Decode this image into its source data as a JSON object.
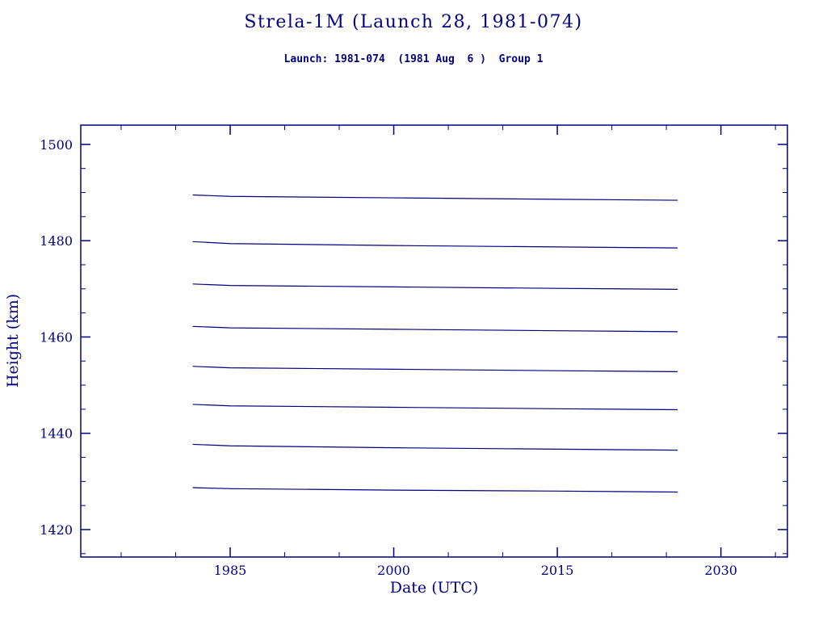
{
  "chart_data": {
    "type": "line",
    "title": "Strela-1M (Launch 28, 1981-074)",
    "subtitle": "Launch: 1981-074  (1981 Aug  6 )  Group 1",
    "xlabel": "Date (UTC)",
    "ylabel": "Height (km)",
    "xlim": [
      1971.3,
      2036.1
    ],
    "ylim": [
      1414.3,
      1504.0
    ],
    "xticks": [
      1985,
      2000,
      2015,
      2030
    ],
    "yticks": [
      1420,
      1440,
      1460,
      1480,
      1500
    ],
    "minor_step_x": 5,
    "minor_step_y": 5,
    "grid": false,
    "legend": "none",
    "line_color": "#000080",
    "text_color": "#000080",
    "background_color": "#ffffff",
    "series": [
      {
        "name": "series-1",
        "x": [
          1981.6,
          1985,
          2000,
          2015,
          2026
        ],
        "y": [
          1489.5,
          1489.2,
          1488.9,
          1488.6,
          1488.4
        ]
      },
      {
        "name": "series-2",
        "x": [
          1981.6,
          1985,
          2000,
          2015,
          2026
        ],
        "y": [
          1479.8,
          1479.4,
          1479.0,
          1478.7,
          1478.5
        ]
      },
      {
        "name": "series-3",
        "x": [
          1981.6,
          1985,
          2000,
          2015,
          2026
        ],
        "y": [
          1471.0,
          1470.7,
          1470.4,
          1470.1,
          1469.9
        ]
      },
      {
        "name": "series-4",
        "x": [
          1981.6,
          1985,
          2000,
          2015,
          2026
        ],
        "y": [
          1462.2,
          1461.9,
          1461.6,
          1461.3,
          1461.1
        ]
      },
      {
        "name": "series-5",
        "x": [
          1981.6,
          1985,
          2000,
          2015,
          2026
        ],
        "y": [
          1453.9,
          1453.6,
          1453.3,
          1453.0,
          1452.8
        ]
      },
      {
        "name": "series-6",
        "x": [
          1981.6,
          1985,
          2000,
          2015,
          2026
        ],
        "y": [
          1446.0,
          1445.7,
          1445.4,
          1445.1,
          1444.9
        ]
      },
      {
        "name": "series-7",
        "x": [
          1981.6,
          1985,
          2000,
          2015,
          2026
        ],
        "y": [
          1437.7,
          1437.4,
          1437.0,
          1436.7,
          1436.5
        ]
      },
      {
        "name": "series-8",
        "x": [
          1981.6,
          1985,
          2000,
          2015,
          2026
        ],
        "y": [
          1428.7,
          1428.5,
          1428.2,
          1428.0,
          1427.8
        ]
      }
    ]
  }
}
